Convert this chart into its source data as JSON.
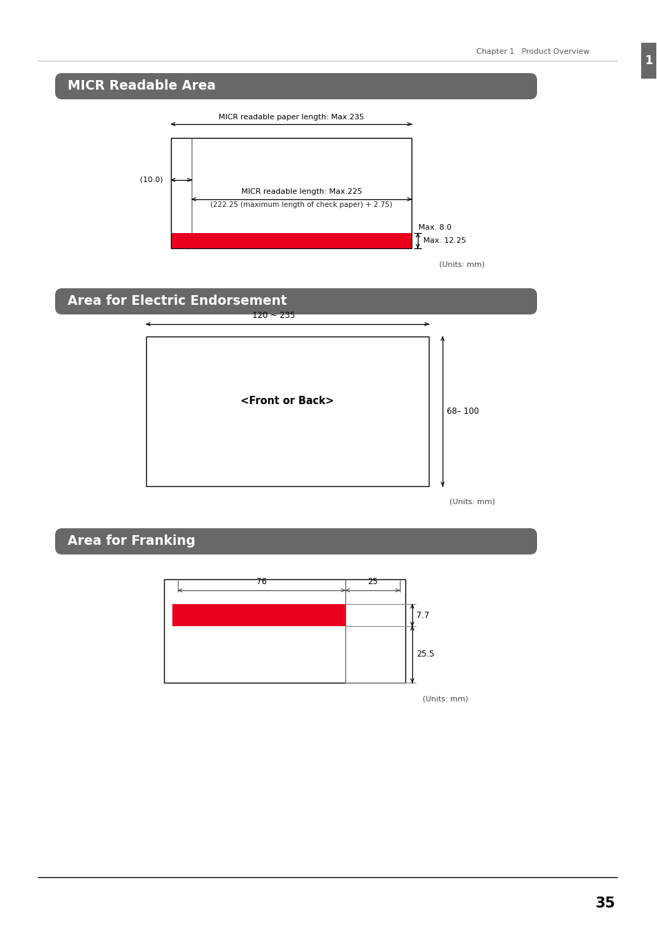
{
  "bg_color": "#ffffff",
  "header_color": "#686868",
  "red_color": "#e8001c",
  "black": "#000000",
  "chapter_text": "Chapter 1   Product Overview",
  "page_number": "35",
  "section1_title": "MICR Readable Area",
  "section2_title": "Area for Electric Endorsement",
  "section3_title": "Area for Franking",
  "micr_paper_label": "MICR readable paper length: Max.235",
  "micr_length_label": "MICR readable length: Max.225",
  "micr_length_sub": "(222.25 (maximum length of check paper) + 2.75)",
  "micr_offset_label": "(10.0)",
  "micr_max8_label": "Max. 8.0",
  "micr_max12_label": "Max. 12.25",
  "micr_units": "(Units: mm)",
  "endorse_width_label": "120 ~ 235",
  "endorse_height_label": "68– 100",
  "endorse_center_label": "<Front or Back>",
  "endorse_units": "(Units: mm)",
  "frank_dim1_label": "76",
  "frank_dim2_label": "25",
  "frank_height1_label": "7.7",
  "frank_height2_label": "25.5",
  "frank_units": "(Units: mm)",
  "tab_label": "1"
}
